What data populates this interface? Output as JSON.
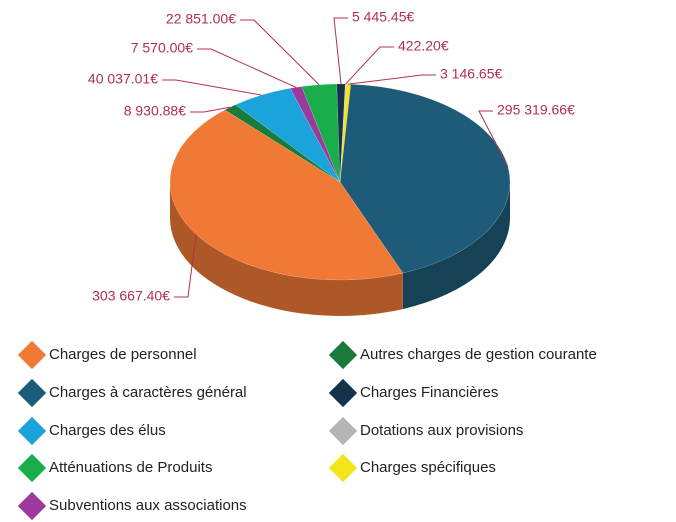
{
  "chart_data": {
    "type": "pie",
    "categories": [
      "Charges spécifiques",
      "Charges à caractères général",
      "Charges de personnel",
      "Autres charges de gestion courante",
      "Charges des élus",
      "Subventions aux associations",
      "Atténuations de Produits",
      "Charges Financières",
      "Dotations aux provisions"
    ],
    "values": [
      3146.65,
      295319.66,
      303667.4,
      8930.88,
      40037.01,
      7570.0,
      22851.0,
      5445.45,
      422.2
    ],
    "value_labels": [
      "3 146.65€",
      "295 319.66€",
      "303 667.40€",
      "8 930.88€",
      "40 037.01€",
      "7 570.00€",
      "22 851.00€",
      "5 445.45€",
      "422.20€"
    ],
    "colors": [
      "#f3e51c",
      "#1e5b78",
      "#f07a35",
      "#1a7a3a",
      "#1ba3dc",
      "#9b3a9b",
      "#1aae4a",
      "#14324a",
      "#b5b5b5"
    ]
  }
}
